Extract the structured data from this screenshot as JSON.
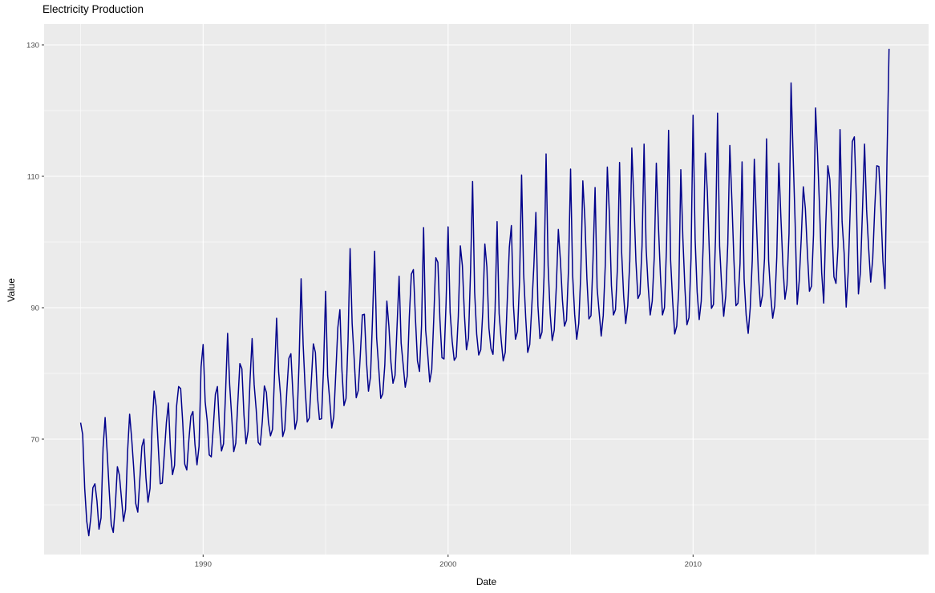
{
  "title": "Electricity Production",
  "x_axis_title": "Date",
  "y_axis_title": "Value",
  "colors": {
    "line": "#00008B",
    "panel_background": "#EBEBEB",
    "gridline": "#FFFFFF",
    "tick_mark": "#333333",
    "tick_label": "#4D4D4D",
    "title_text": "#000000"
  },
  "chart_data": {
    "type": "line",
    "title": "Electricity Production",
    "xlabel": "Date",
    "ylabel": "Value",
    "legend": false,
    "grid": true,
    "x_start_year": 1985.0,
    "x_step_months": 1,
    "x_tick_values": [
      1990,
      2000,
      2010
    ],
    "x_tick_labels": [
      "1990",
      "2000",
      "2010"
    ],
    "x_minor_tick_values": [
      1985,
      1995,
      2005,
      2015
    ],
    "y_tick_values": [
      70,
      90,
      110,
      130
    ],
    "y_tick_labels": [
      "70",
      "90",
      "110",
      "130"
    ],
    "y_minor_tick_values": [
      60,
      80,
      100,
      120
    ],
    "xlim": [
      1983.5,
      2019.6
    ],
    "ylim": [
      52.4,
      133.2
    ],
    "values": [
      72.5,
      70.7,
      62.5,
      57.5,
      55.3,
      58.1,
      62.6,
      63.2,
      60.6,
      56.3,
      58.0,
      68.7,
      73.3,
      68.0,
      62.2,
      57.0,
      55.8,
      59.9,
      65.8,
      64.5,
      61.0,
      57.5,
      59.3,
      68.1,
      73.8,
      70.1,
      65.6,
      60.2,
      58.9,
      63.9,
      68.9,
      70.0,
      64.1,
      60.4,
      62.5,
      71.8,
      77.3,
      75.0,
      69.0,
      63.2,
      63.3,
      67.8,
      72.5,
      75.5,
      68.5,
      64.6,
      66.0,
      75.0,
      78.0,
      77.7,
      72.6,
      66.2,
      65.3,
      69.8,
      73.5,
      74.2,
      69.2,
      66.1,
      68.9,
      81.0,
      84.4,
      75.7,
      72.8,
      67.6,
      67.3,
      71.9,
      76.8,
      78.0,
      71.9,
      68.2,
      69.3,
      77.1,
      86.1,
      78.3,
      73.4,
      68.1,
      69.4,
      75.6,
      81.5,
      80.7,
      73.7,
      69.3,
      71.2,
      79.1,
      85.3,
      78.3,
      74.5,
      69.5,
      69.1,
      72.7,
      78.1,
      77.1,
      72.6,
      70.5,
      71.5,
      80.0,
      88.4,
      80.2,
      76.4,
      70.4,
      71.5,
      77.3,
      82.3,
      83.0,
      76.8,
      71.5,
      72.9,
      81.6,
      94.4,
      84.4,
      77.6,
      72.6,
      73.2,
      78.8,
      84.5,
      83.2,
      76.5,
      73.0,
      73.1,
      80.9,
      92.5,
      79.7,
      76.0,
      71.7,
      73.4,
      80.1,
      87.0,
      89.7,
      80.5,
      75.1,
      76.2,
      85.2,
      99.0,
      87.6,
      82.2,
      76.3,
      77.4,
      82.8,
      88.9,
      89.0,
      81.9,
      77.3,
      79.5,
      88.5,
      98.6,
      85.4,
      80.9,
      76.2,
      76.9,
      81.3,
      91.0,
      87.2,
      81.7,
      78.5,
      79.7,
      87.2,
      94.8,
      84.6,
      81.3,
      77.9,
      79.6,
      88.6,
      95.1,
      95.8,
      88.4,
      81.9,
      80.3,
      87.3,
      102.2,
      86.6,
      83.0,
      78.7,
      80.6,
      88.5,
      97.6,
      96.9,
      88.2,
      82.4,
      82.2,
      90.6,
      102.3,
      89.3,
      84.9,
      82.0,
      82.5,
      88.7,
      99.4,
      96.4,
      88.9,
      83.6,
      85.4,
      95.6,
      109.2,
      92.4,
      86.0,
      82.8,
      83.6,
      89.4,
      99.7,
      96.2,
      86.9,
      83.8,
      82.9,
      89.5,
      103.1,
      89.1,
      85.1,
      81.9,
      83.2,
      91.2,
      99.2,
      102.5,
      90.4,
      85.2,
      86.4,
      94.0,
      110.2,
      95.2,
      88.6,
      83.2,
      84.4,
      90.2,
      96.3,
      104.5,
      90.3,
      85.3,
      86.3,
      94.8,
      113.4,
      96.4,
      89.1,
      85.0,
      86.6,
      93.1,
      101.9,
      97.3,
      91.2,
      87.2,
      88.1,
      96.0,
      111.1,
      95.0,
      89.0,
      85.2,
      87.6,
      95.2,
      109.3,
      103.5,
      94.4,
      88.3,
      88.8,
      97.4,
      108.3,
      93.0,
      89.3,
      85.7,
      88.8,
      96.5,
      111.4,
      104.3,
      93.4,
      88.9,
      89.7,
      96.4,
      112.1,
      98.5,
      91.8,
      87.6,
      90.3,
      97.1,
      114.3,
      106.4,
      97.1,
      91.4,
      92.1,
      99.4,
      114.9,
      99.1,
      93.3,
      88.9,
      91.0,
      97.8,
      112.0,
      102.7,
      95.0,
      88.9,
      90.0,
      99.4,
      117.0,
      97.2,
      91.0,
      86.0,
      87.2,
      92.9,
      111.0,
      100.6,
      93.0,
      87.4,
      88.5,
      97.5,
      119.3,
      100.5,
      92.4,
      88.2,
      91.0,
      99.9,
      113.5,
      107.6,
      98.2,
      89.9,
      90.5,
      100.7,
      119.6,
      99.4,
      93.3,
      88.7,
      91.8,
      99.7,
      114.7,
      106.4,
      97.3,
      90.3,
      90.7,
      96.7,
      112.2,
      94.4,
      88.9,
      86.1,
      90.0,
      97.2,
      112.6,
      103.4,
      95.1,
      90.2,
      91.9,
      97.5,
      115.7,
      97.2,
      92.0,
      88.4,
      90.3,
      97.7,
      112.0,
      103.9,
      96.5,
      91.3,
      93.4,
      101.3,
      124.2,
      113.3,
      102.9,
      90.5,
      94.1,
      100.6,
      108.4,
      105.1,
      98.4,
      92.5,
      93.3,
      101.1,
      120.4,
      113.2,
      104.9,
      95.3,
      90.7,
      102.7,
      111.6,
      109.5,
      102.4,
      94.7,
      93.7,
      99.3,
      117.1,
      103.1,
      98.3,
      90.1,
      95.5,
      105.3,
      115.3,
      116.0,
      106.4,
      92.1,
      95.5,
      105.0,
      114.9,
      104.9,
      99.1,
      93.9,
      97.4,
      105.2,
      111.6,
      111.5,
      105.0,
      97.1,
      92.9,
      112.8,
      129.4
    ]
  }
}
